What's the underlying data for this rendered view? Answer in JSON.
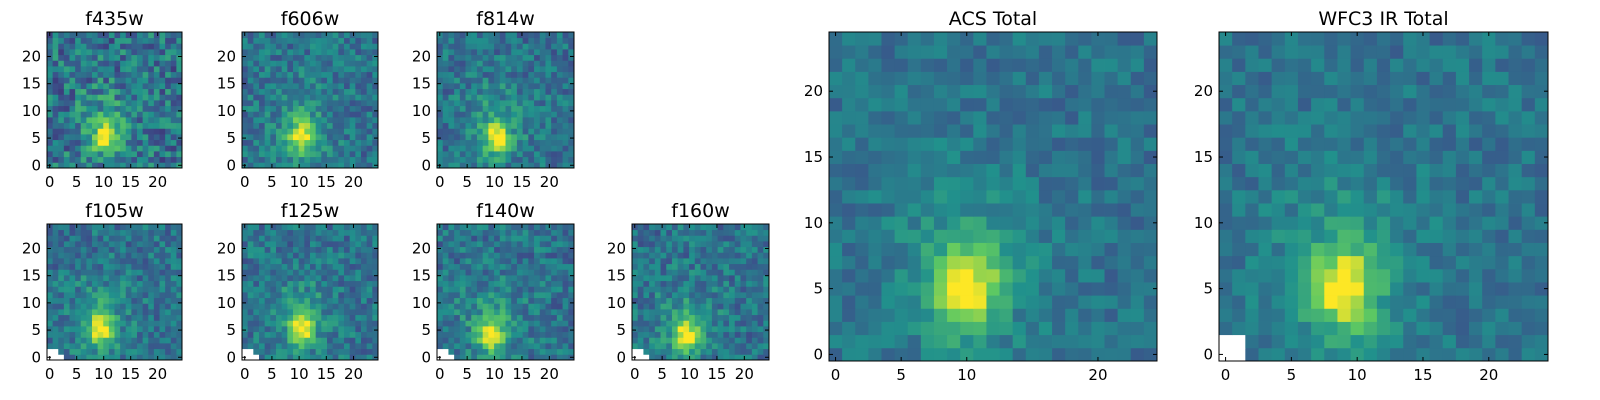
{
  "chart_data": [
    {
      "type": "heatmap",
      "title": "f435w",
      "xticks": [
        "0",
        "5",
        "10",
        "15",
        "20"
      ],
      "yticks": [
        "0",
        "5",
        "10",
        "15",
        "20"
      ],
      "grid_shape": [
        24,
        24
      ],
      "source_center": [
        10,
        5
      ],
      "noise": "high",
      "masked_corner": "none",
      "xlim": [
        0,
        24
      ],
      "ylim": [
        0,
        24
      ]
    },
    {
      "type": "heatmap",
      "title": "f606w",
      "xticks": [
        "0",
        "5",
        "10",
        "15",
        "20"
      ],
      "yticks": [
        "0",
        "5",
        "10",
        "15",
        "20"
      ],
      "grid_shape": [
        24,
        24
      ],
      "source_center": [
        10,
        5
      ],
      "noise": "medium",
      "masked_corner": "none",
      "xlim": [
        0,
        24
      ],
      "ylim": [
        0,
        24
      ]
    },
    {
      "type": "heatmap",
      "title": "f814w",
      "xticks": [
        "0",
        "5",
        "10",
        "15",
        "20"
      ],
      "yticks": [
        "0",
        "5",
        "10",
        "15",
        "20"
      ],
      "grid_shape": [
        24,
        24
      ],
      "source_center": [
        10,
        5
      ],
      "noise": "medium",
      "masked_corner": "none",
      "xlim": [
        0,
        24
      ],
      "ylim": [
        0,
        24
      ]
    },
    {
      "type": "heatmap",
      "title": "f105w",
      "xticks": [
        "0",
        "5",
        "10",
        "15",
        "20"
      ],
      "yticks": [
        "0",
        "5",
        "10",
        "15",
        "20"
      ],
      "grid_shape": [
        24,
        24
      ],
      "source_center": [
        9,
        5
      ],
      "noise": "medium",
      "masked_corner": "bottom-left",
      "xlim": [
        0,
        24
      ],
      "ylim": [
        0,
        24
      ]
    },
    {
      "type": "heatmap",
      "title": "f125w",
      "xticks": [
        "0",
        "5",
        "10",
        "15",
        "20"
      ],
      "yticks": [
        "0",
        "5",
        "10",
        "15",
        "20"
      ],
      "grid_shape": [
        24,
        24
      ],
      "source_center": [
        10,
        5
      ],
      "noise": "medium",
      "masked_corner": "bottom-left",
      "xlim": [
        0,
        24
      ],
      "ylim": [
        0,
        24
      ]
    },
    {
      "type": "heatmap",
      "title": "f140w",
      "xticks": [
        "0",
        "5",
        "10",
        "15",
        "20"
      ],
      "yticks": [
        "0",
        "5",
        "10",
        "15",
        "20"
      ],
      "grid_shape": [
        24,
        24
      ],
      "source_center": [
        9,
        4
      ],
      "noise": "medium",
      "masked_corner": "bottom-left",
      "xlim": [
        0,
        24
      ],
      "ylim": [
        0,
        24
      ]
    },
    {
      "type": "heatmap",
      "title": "f160w",
      "xticks": [
        "0",
        "5",
        "10",
        "15",
        "20"
      ],
      "yticks": [
        "0",
        "5",
        "10",
        "15",
        "20"
      ],
      "grid_shape": [
        24,
        24
      ],
      "source_center": [
        9,
        4
      ],
      "noise": "medium",
      "masked_corner": "bottom-left",
      "xlim": [
        0,
        24
      ],
      "ylim": [
        0,
        24
      ]
    },
    {
      "type": "heatmap",
      "title": "ACS Total",
      "xticks": [
        "0",
        "5",
        "10",
        "20"
      ],
      "yticks": [
        "0",
        "5",
        "10",
        "15",
        "20"
      ],
      "grid_shape": [
        25,
        25
      ],
      "source_center": [
        10,
        5
      ],
      "noise": "low",
      "masked_corner": "none",
      "xlim": [
        0,
        24
      ],
      "ylim": [
        0,
        24
      ]
    },
    {
      "type": "heatmap",
      "title": "WFC3 IR Total",
      "xticks": [
        "0",
        "5",
        "10",
        "15",
        "20"
      ],
      "yticks": [
        "0",
        "5",
        "10",
        "15",
        "20"
      ],
      "grid_shape": [
        25,
        25
      ],
      "source_center": [
        9,
        5
      ],
      "noise": "low",
      "masked_corner": "bottom-left",
      "xlim": [
        0,
        24
      ],
      "ylim": [
        0,
        24
      ]
    }
  ],
  "colormap": [
    "#440154",
    "#3b528b",
    "#21918c",
    "#5ec962",
    "#fde725"
  ]
}
